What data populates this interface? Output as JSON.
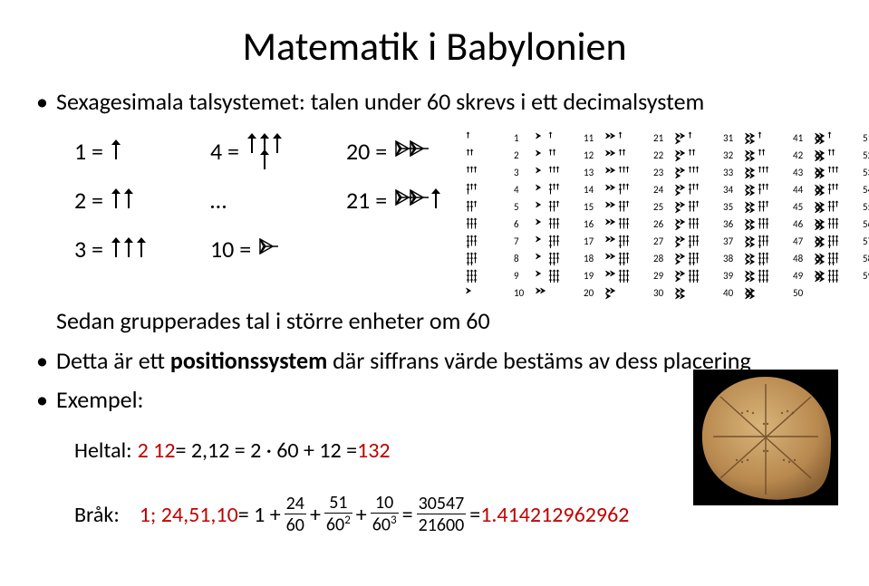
{
  "title": "Matematik i Babylonien",
  "line1": "Sexagesimala talsystemet: talen under 60 skrevs i ett decimalsystem",
  "examples": {
    "r1a": "1 =",
    "r1b": "4 =",
    "r1c": "20 =",
    "r2a": "2 =",
    "r2b": "…",
    "r2c": "21 =",
    "r3a": "3 =",
    "r3b": "10 =",
    "r3c": ""
  },
  "line_group": "Sedan grupperades tal i större enheter om 60",
  "line_pos1": "Detta är ett ",
  "line_pos_bold": "positionssystem",
  "line_pos2": " där siffrans värde bestäms av dess placering",
  "line_ex": "Exempel:",
  "heltal": {
    "label": "Heltal: ",
    "a": "2  12",
    "eq1": " = 2,12 = 2 · 60 + 12 = ",
    "res": "132"
  },
  "brak": {
    "label": "Bråk:",
    "lead": "1; 24,51,10",
    "eq": " = 1 + ",
    "f1n": "24",
    "f1d": "60",
    "p1": " + ",
    "f2n": "51",
    "f2d": "60",
    "f2e": "2",
    "p2": " + ",
    "f3n": "10",
    "f3d": "60",
    "f3e": "3",
    "p3": " = ",
    "f4n": "30547",
    "f4d": "21600",
    "p4": " = ",
    "res": "1.414212962962"
  },
  "cun_svg": {
    "bg": "#ffffff",
    "stroke": "#000000"
  }
}
